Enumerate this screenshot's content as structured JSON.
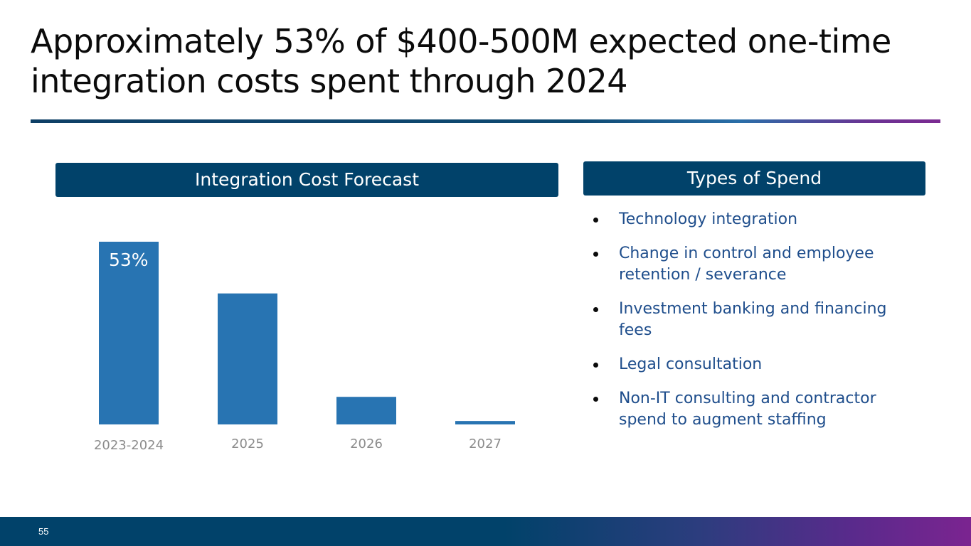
{
  "slide": {
    "title": "Approximately 53% of $400-500M expected one-time integration costs spent through 2024",
    "page_number": "55"
  },
  "left_panel": {
    "header": "Integration Cost Forecast"
  },
  "right_panel": {
    "header": "Types of Spend",
    "items": [
      "Technology integration",
      "Change in control and employee retention / severance",
      "Investment banking and financing fees",
      "Legal consultation",
      "Non-IT consulting and contractor spend to augment staffing"
    ]
  },
  "colors": {
    "bar": "#2874b2",
    "header_bg": "#01426a",
    "tick_label": "#8c8c8c",
    "bar_label": "#ffffff"
  },
  "chart_data": {
    "type": "bar",
    "title": "Integration Cost Forecast",
    "categories": [
      "2023-2024",
      "2025",
      "2026",
      "2027"
    ],
    "values": [
      53,
      38,
      8,
      1
    ],
    "unit": "% of expected one-time integration costs",
    "data_labels": [
      "53%",
      "",
      "",
      ""
    ],
    "ylim": [
      0,
      53
    ],
    "xlabel": "",
    "ylabel": "",
    "grid": false,
    "legend": "none"
  }
}
